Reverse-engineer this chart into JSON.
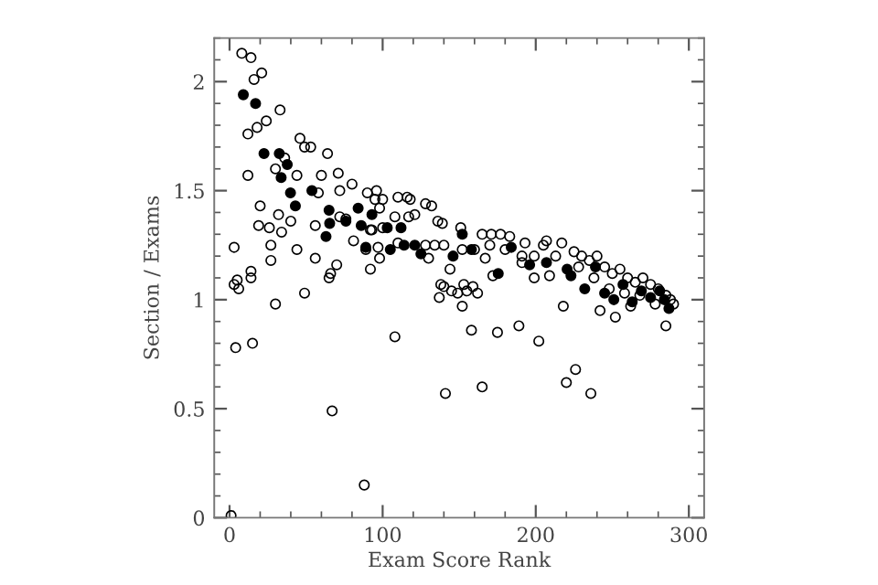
{
  "chart_data": {
    "type": "scatter",
    "xlabel": "Exam Score Rank",
    "ylabel": "Section / Exams",
    "xlim": [
      -10,
      310
    ],
    "ylim": [
      0,
      2.2
    ],
    "xticks": [
      0,
      100,
      200,
      300
    ],
    "yticks": [
      0,
      0.5,
      1,
      1.5,
      2
    ],
    "grid": false,
    "marker": "circle",
    "series": [
      {
        "color": "#000000",
        "x": [
          8,
          14,
          16,
          21,
          24,
          18,
          12,
          33,
          12,
          46,
          49,
          53,
          64,
          30,
          36,
          44,
          60,
          71,
          58,
          72,
          80,
          20,
          32,
          40,
          19,
          26,
          34,
          56,
          72,
          76,
          3,
          27,
          44,
          27,
          56,
          66,
          70,
          5,
          14,
          81,
          89,
          97,
          93,
          98,
          95,
          3,
          6,
          4,
          14,
          15,
          30,
          49,
          65,
          67,
          88,
          108,
          137,
          138,
          141,
          145,
          152,
          153,
          155,
          158,
          165,
          175,
          189,
          202,
          1,
          90,
          96,
          100,
          110,
          116,
          118,
          128,
          132,
          108,
          117,
          121,
          136,
          139,
          151,
          165,
          171,
          177,
          183,
          193,
          207,
          217,
          92,
          100,
          110,
          128,
          134,
          140,
          152,
          160,
          170,
          180,
          191,
          199,
          205,
          213,
          98,
          130,
          167,
          191,
          92,
          144,
          172,
          199,
          209,
          140,
          159,
          162,
          149,
          218,
          220,
          236,
          226,
          225,
          230,
          235,
          240,
          245,
          250,
          255,
          260,
          265,
          270,
          275,
          280,
          285,
          290,
          228,
          238,
          248,
          258,
          268,
          278,
          285,
          288,
          242,
          252,
          262
        ],
        "values": [
          2.13,
          2.11,
          2.01,
          2.04,
          1.82,
          1.79,
          1.76,
          1.87,
          1.57,
          1.74,
          1.7,
          1.7,
          1.67,
          1.6,
          1.65,
          1.57,
          1.57,
          1.58,
          1.49,
          1.5,
          1.53,
          1.43,
          1.39,
          1.36,
          1.34,
          1.33,
          1.31,
          1.34,
          1.38,
          1.37,
          1.24,
          1.25,
          1.23,
          1.18,
          1.19,
          1.12,
          1.16,
          1.09,
          1.13,
          1.27,
          1.23,
          1.24,
          1.32,
          1.42,
          1.46,
          1.07,
          1.05,
          0.78,
          1.1,
          0.8,
          0.98,
          1.03,
          1.1,
          0.49,
          0.15,
          0.83,
          1.01,
          1.07,
          0.57,
          1.04,
          0.97,
          1.07,
          1.04,
          0.86,
          0.6,
          0.85,
          0.88,
          0.81,
          0.01,
          1.49,
          1.5,
          1.46,
          1.47,
          1.47,
          1.46,
          1.44,
          1.43,
          1.38,
          1.38,
          1.39,
          1.36,
          1.35,
          1.33,
          1.3,
          1.3,
          1.3,
          1.29,
          1.26,
          1.27,
          1.26,
          1.32,
          1.33,
          1.26,
          1.25,
          1.25,
          1.25,
          1.23,
          1.23,
          1.25,
          1.23,
          1.2,
          1.2,
          1.25,
          1.2,
          1.19,
          1.19,
          1.19,
          1.17,
          1.14,
          1.14,
          1.11,
          1.1,
          1.11,
          1.06,
          1.06,
          1.03,
          1.03,
          0.97,
          0.62,
          0.57,
          0.68,
          1.22,
          1.2,
          1.18,
          1.2,
          1.15,
          1.12,
          1.14,
          1.1,
          1.08,
          1.1,
          1.07,
          1.05,
          1.02,
          0.98,
          1.15,
          1.1,
          1.05,
          1.03,
          1.02,
          0.98,
          0.88,
          1.0,
          0.95,
          0.92,
          0.97
        ]
      },
      {
        "color": "#000000",
        "x": [
          9,
          17,
          22.5,
          32.5,
          37.7,
          33.7,
          39.8,
          53.8,
          43,
          65,
          63,
          65.4,
          76,
          84,
          86,
          89,
          93,
          103,
          112,
          105,
          114,
          121,
          125,
          146,
          152,
          158,
          175.5,
          184,
          196,
          207,
          220.5,
          223,
          232,
          239,
          245,
          251,
          257,
          263,
          269,
          275,
          281,
          287,
          284
        ],
        "values": [
          1.94,
          1.9,
          1.67,
          1.67,
          1.62,
          1.56,
          1.49,
          1.5,
          1.43,
          1.41,
          1.29,
          1.35,
          1.36,
          1.42,
          1.34,
          1.24,
          1.39,
          1.33,
          1.33,
          1.23,
          1.25,
          1.25,
          1.21,
          1.2,
          1.3,
          1.23,
          1.12,
          1.24,
          1.16,
          1.17,
          1.14,
          1.11,
          1.05,
          1.15,
          1.03,
          1.0,
          1.07,
          0.99,
          1.04,
          1.01,
          1.04,
          0.96,
          1.0
        ]
      }
    ]
  }
}
